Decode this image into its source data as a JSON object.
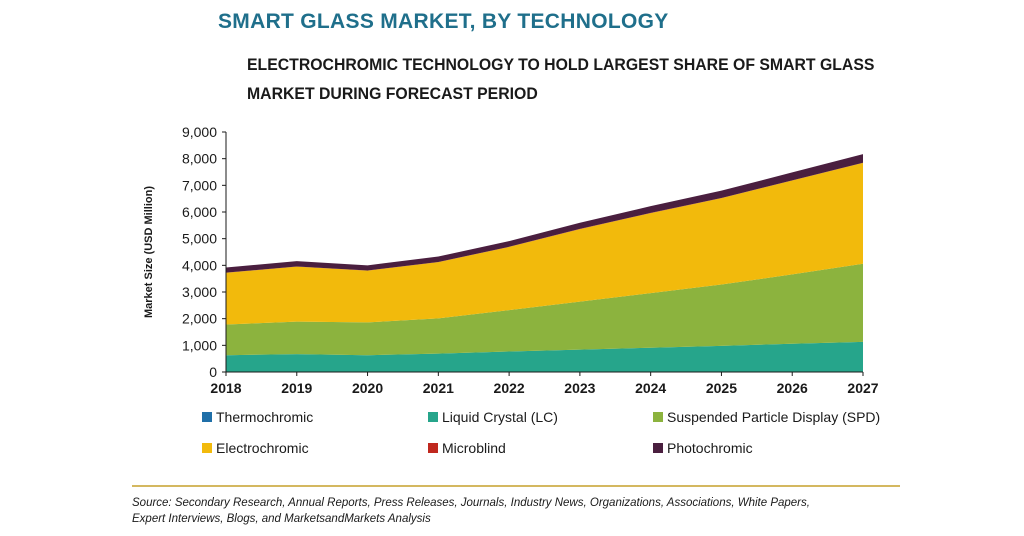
{
  "header": {
    "title": "SMART GLASS MARKET, BY TECHNOLOGY",
    "subtitle_line1": "ELECTROCHROMIC TECHNOLOGY TO HOLD LARGEST SHARE OF SMART GLASS",
    "subtitle_line2": "MARKET DURING FORECAST PERIOD"
  },
  "footer": {
    "source_line1": "Source: Secondary Research, Annual Reports, Press Releases, Journals, Industry News, Organizations, Associations, White Papers,",
    "source_line2": "Expert Interviews, Blogs, and MarketsandMarkets Analysis"
  },
  "chart_data": {
    "type": "area",
    "stacked": true,
    "title": "SMART GLASS MARKET, BY TECHNOLOGY",
    "xlabel": "",
    "ylabel": "Market Size (USD Million)",
    "ylim": [
      0,
      9000
    ],
    "yticks": [
      "0",
      "1,000",
      "2,000",
      "3,000",
      "4,000",
      "5,000",
      "6,000",
      "7,000",
      "8,000",
      "9,000"
    ],
    "x": [
      "2018",
      "2019",
      "2020",
      "2021",
      "2022",
      "2023",
      "2024",
      "2025",
      "2026",
      "2027"
    ],
    "grid": false,
    "legend_position": "bottom",
    "series": [
      {
        "name": "Thermochromic",
        "color": "#1f6fa8",
        "values": [
          10,
          10,
          10,
          10,
          10,
          10,
          10,
          10,
          10,
          10
        ]
      },
      {
        "name": "Liquid Crystal (LC)",
        "color": "#26a58b",
        "values": [
          620,
          660,
          620,
          680,
          760,
          830,
          900,
          970,
          1050,
          1120
        ]
      },
      {
        "name": "Suspended Particle Display (SPD)",
        "color": "#8cb33e",
        "values": [
          1150,
          1220,
          1230,
          1320,
          1550,
          1800,
          2050,
          2300,
          2600,
          2930
        ]
      },
      {
        "name": "Electrochromic",
        "color": "#f2ba0c",
        "values": [
          1940,
          2060,
          1940,
          2110,
          2370,
          2720,
          3000,
          3240,
          3520,
          3780
        ]
      },
      {
        "name": "Microblind",
        "color": "#c0281e",
        "values": [
          5,
          5,
          5,
          5,
          5,
          5,
          5,
          5,
          5,
          5
        ]
      },
      {
        "name": "Photochromic",
        "color": "#4a1f3f",
        "values": [
          195,
          205,
          195,
          205,
          215,
          230,
          255,
          275,
          300,
          325
        ]
      }
    ]
  }
}
